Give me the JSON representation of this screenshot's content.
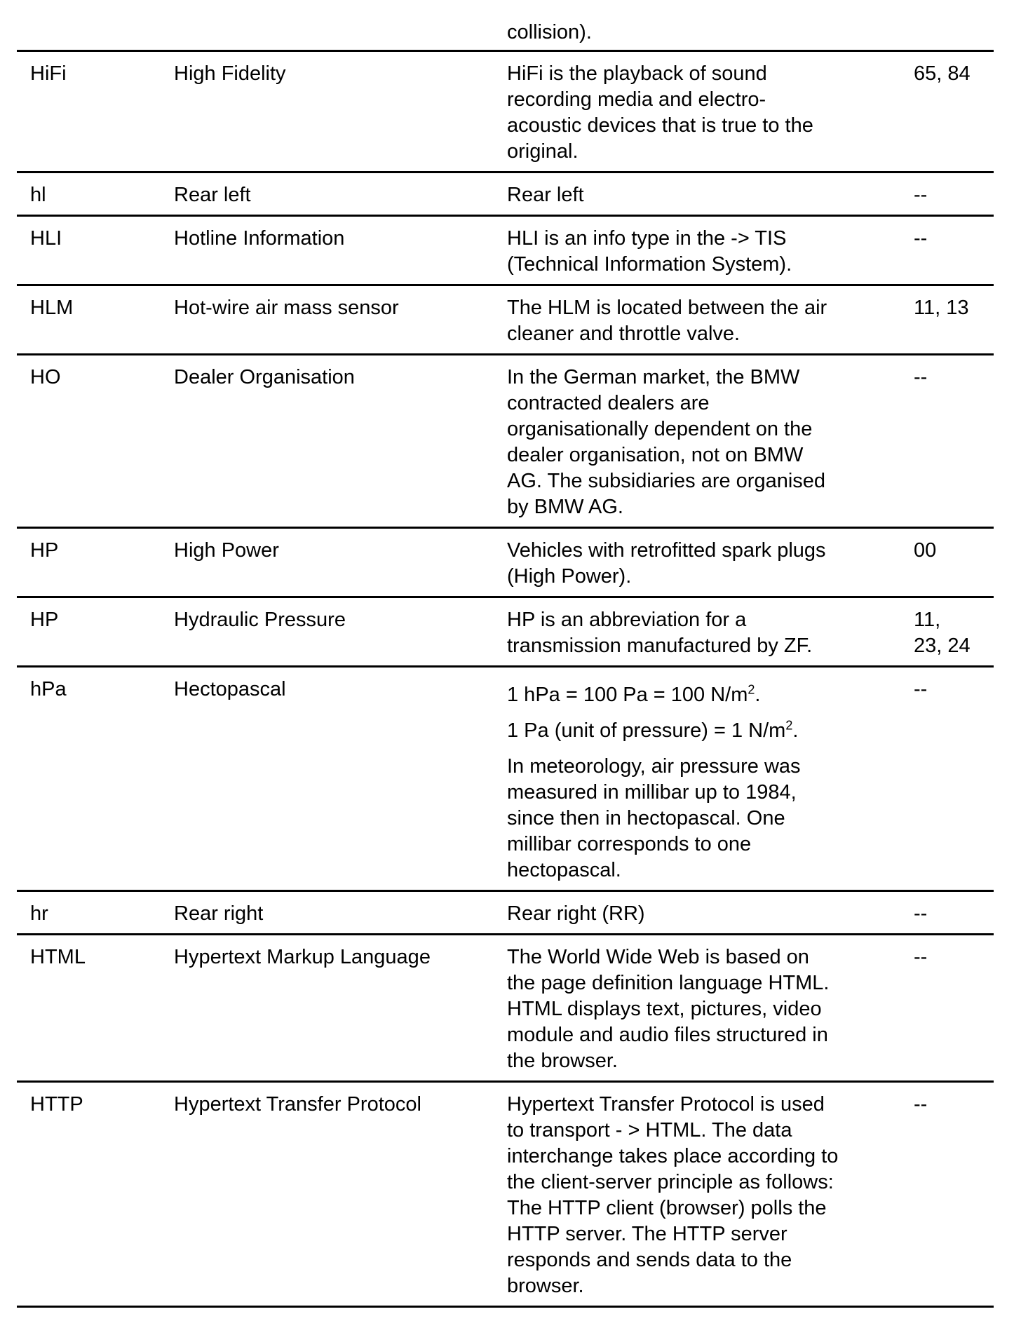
{
  "continuation": {
    "description": [
      [
        "collision)."
      ]
    ]
  },
  "rows": [
    {
      "abbr": "HiFi",
      "term": "High Fidelity",
      "description": [
        [
          "HiFi is the playback of sound",
          "recording media and electro-",
          "acoustic devices that is true to the",
          "original."
        ]
      ],
      "ref": [
        "65, 84"
      ]
    },
    {
      "abbr": "hl",
      "term": "Rear left",
      "description": [
        [
          "Rear left"
        ]
      ],
      "ref": [
        "--"
      ]
    },
    {
      "abbr": "HLI",
      "term": "Hotline Information",
      "description": [
        [
          "HLI is an info type in the -> TIS",
          "(Technical Information System)."
        ]
      ],
      "ref": [
        "--"
      ]
    },
    {
      "abbr": "HLM",
      "term": "Hot-wire air mass sensor",
      "description": [
        [
          "The HLM is located between the air",
          "cleaner and throttle valve."
        ]
      ],
      "ref": [
        "11, 13"
      ]
    },
    {
      "abbr": "HO",
      "term": "Dealer Organisation",
      "description": [
        [
          "In the German market, the BMW",
          "contracted dealers are",
          "organisationally dependent on the",
          "dealer organisation, not on BMW",
          "AG. The subsidiaries are organised",
          "by BMW AG."
        ]
      ],
      "ref": [
        "--"
      ]
    },
    {
      "abbr": "HP",
      "term": "High Power",
      "description": [
        [
          "Vehicles with retrofitted spark plugs",
          "(High Power)."
        ]
      ],
      "ref": [
        "00"
      ]
    },
    {
      "abbr": "HP",
      "term": "Hydraulic Pressure",
      "description": [
        [
          "HP is an abbreviation for a",
          "transmission manufactured by ZF."
        ]
      ],
      "ref": [
        "11,",
        "23, 24"
      ]
    },
    {
      "abbr": "hPa",
      "term": "Hectopascal",
      "description": [
        [
          "1 hPa = 100 Pa = 100 N/m²."
        ],
        [
          "1 Pa (unit of pressure) = 1 N/m²."
        ],
        [
          "In meteorology, air pressure was",
          "measured in millibar up to 1984,",
          "since then in hectopascal. One",
          "millibar corresponds to one",
          "hectopascal."
        ]
      ],
      "ref": [
        "--"
      ]
    },
    {
      "abbr": "hr",
      "term": "Rear right",
      "description": [
        [
          "Rear right (RR)"
        ]
      ],
      "ref": [
        "--"
      ]
    },
    {
      "abbr": "HTML",
      "term": "Hypertext Markup Language",
      "description": [
        [
          "The World Wide Web is based on",
          "the page definition language HTML.",
          "HTML displays text, pictures, video",
          "module and audio files structured in",
          "the browser."
        ]
      ],
      "ref": [
        "--"
      ]
    },
    {
      "abbr": "HTTP",
      "term": "Hypertext Transfer Protocol",
      "description": [
        [
          "Hypertext Transfer Protocol is used",
          "to transport - > HTML. The data",
          "interchange takes place according to",
          "the client-server principle as follows:",
          "The HTTP client (browser) polls the",
          "HTTP server. The HTTP server",
          "responds and sends data to the",
          "browser."
        ]
      ],
      "ref": [
        "--"
      ]
    }
  ]
}
